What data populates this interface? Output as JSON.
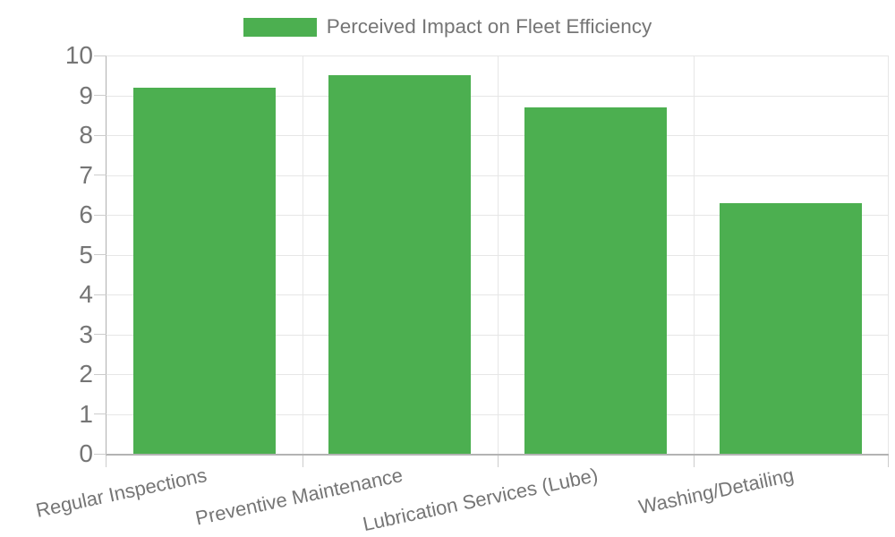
{
  "legend": {
    "label": "Perceived Impact on Fleet Efficiency",
    "swatch_color": "#4CAF50"
  },
  "chart_data": {
    "type": "bar",
    "title": "Perceived Impact on Fleet Efficiency",
    "series": [
      {
        "name": "Perceived Impact on Fleet Efficiency",
        "values": [
          9.2,
          9.5,
          8.7,
          6.3
        ]
      }
    ],
    "categories": [
      "Regular Inspections",
      "Preventive Maintenance",
      "Lubrication Services (Lube)",
      "Washing/Detailing"
    ],
    "xlabel": "",
    "ylabel": "",
    "ylim": [
      0,
      10
    ],
    "yticks": [
      0,
      1,
      2,
      3,
      4,
      5,
      6,
      7,
      8,
      9,
      10
    ],
    "grid": true,
    "legend_position": "top-center",
    "bar_color": "#4CAF50",
    "colors": {
      "grid": "#e6e6e6",
      "axis": "#b3b3b3",
      "tick": "#cccccc",
      "text": "#757575"
    }
  }
}
